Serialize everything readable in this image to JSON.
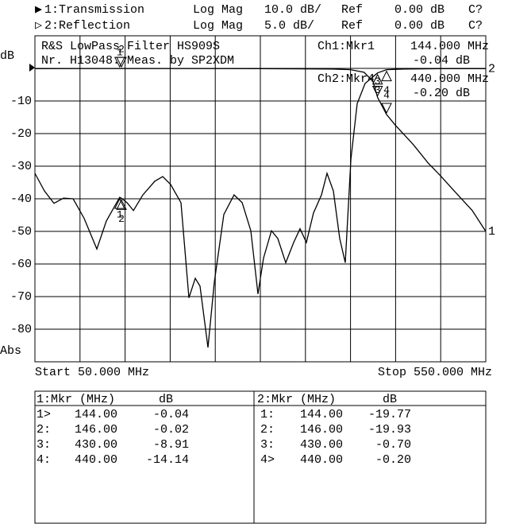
{
  "chart_data": {
    "type": "line",
    "title": "R&S LowPass Filter HS909S",
    "subtitle": "Nr. H13048. Meas. by SP2XDM",
    "y_unit": "dB",
    "y_footer": "Abs",
    "x_start_label": "Start 50.000 MHz",
    "x_stop_label": "Stop 550.000 MHz",
    "xlim": [
      50,
      550
    ],
    "ylim": [
      -90,
      10
    ],
    "y2lim": [
      -45,
      5
    ],
    "yticks": [
      -10,
      -20,
      -30,
      -40,
      -50,
      -60,
      -70,
      -80
    ],
    "grid": true,
    "series": [
      {
        "name": "1:Transmission",
        "color": "#000000",
        "trace_label": "1",
        "format": "Log Mag",
        "scale": "10.0 dB/",
        "ref": "Ref",
        "ref_value": "0.00 dB",
        "flag": "C?",
        "readout": [
          "Ch1:Mkr1",
          "144.000 MHz",
          "-0.04 dB"
        ],
        "table_header": [
          "1:Mkr (MHz)",
          "dB"
        ],
        "marker_tags": [
          "1>",
          "2:",
          "3:",
          "4:"
        ],
        "marker_values": [
          -0.04,
          -0.02,
          -8.91,
          -14.14
        ],
        "marker_value_labels": [
          "-0.04",
          "-0.02",
          "-8.91",
          "-14.14"
        ],
        "x": [
          50,
          100,
          144,
          146,
          200,
          300,
          380,
          400,
          415,
          425,
          430,
          440,
          450,
          460,
          470,
          486,
          500,
          513,
          535,
          550
        ],
        "values": [
          -0.1,
          -0.05,
          -0.04,
          -0.02,
          -0.05,
          -0.1,
          -0.2,
          -0.4,
          -1.2,
          -4,
          -8.91,
          -14.14,
          -17.5,
          -20.5,
          -23.5,
          -29,
          -33,
          -37,
          -43.6,
          -50
        ]
      },
      {
        "name": "2:Reflection",
        "color": "#000000",
        "trace_label": "2",
        "axis": "y2",
        "format": "Log Mag",
        "scale": "5.0 dB/",
        "ref": "Ref",
        "ref_value": "0.00 dB",
        "flag": "C?",
        "readout": [
          "Ch2:Mkr4",
          "440.000 MHz",
          "-0.20 dB"
        ],
        "table_header": [
          "2:Mkr (MHz)",
          "dB"
        ],
        "marker_tags": [
          "1:",
          "2:",
          "3:",
          "4>"
        ],
        "marker_values": [
          -19.77,
          -19.93,
          -0.7,
          -0.2
        ],
        "marker_value_labels": [
          "-19.77",
          "-19.93",
          "-0.70",
          "-0.20"
        ],
        "x": [
          50,
          60.6,
          71.1,
          81.7,
          92.3,
          104.6,
          118.7,
          129.2,
          144,
          146,
          152.1,
          159.2,
          169.7,
          182.9,
          191.7,
          200.5,
          212,
          220.8,
          227.8,
          233.1,
          241.9,
          248.9,
          259.5,
          270.9,
          279.8,
          289.4,
          297.4,
          303.5,
          312.3,
          319.4,
          328.2,
          337,
          344,
          351.1,
          358.9,
          367.8,
          373.9,
          381,
          388,
          394.2,
          400.4,
          407.4,
          416.2,
          430,
          440,
          460,
          500,
          550
        ],
        "values": [
          -16.1,
          -18.8,
          -20.7,
          -19.9,
          -20,
          -23,
          -27.7,
          -23.4,
          -19.77,
          -19.93,
          -20.6,
          -21.8,
          -19.4,
          -17.3,
          -16.6,
          -17.8,
          -20.6,
          -35.2,
          -32.2,
          -33.4,
          -42.8,
          -32.8,
          -22.4,
          -19.4,
          -20.6,
          -24.9,
          -34.6,
          -29.1,
          -24.9,
          -26.1,
          -29.8,
          -26.7,
          -24.6,
          -26.7,
          -22.2,
          -19.4,
          -16.1,
          -18.8,
          -26.1,
          -29.8,
          -13.9,
          -5.4,
          -2.3,
          -0.7,
          -0.2,
          -0.1,
          -0.05,
          -0.05
        ]
      }
    ],
    "markers": {
      "names": [
        "1",
        "2",
        "3",
        "4"
      ],
      "x": [
        144,
        146,
        430,
        440
      ],
      "x_labels": [
        "144.00",
        "146.00",
        "430.00",
        "440.00"
      ]
    }
  }
}
